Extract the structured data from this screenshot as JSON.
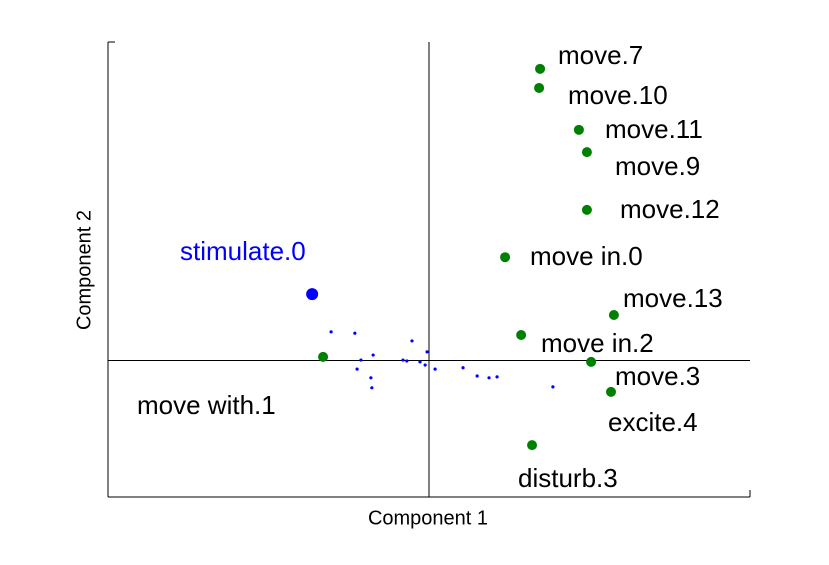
{
  "chart_data": {
    "type": "scatter",
    "xlabel": "Component 1",
    "ylabel": "Component 2",
    "xlim": [
      -1,
      1
    ],
    "ylim": [
      -0.3,
      0.7
    ],
    "series": [
      {
        "color": "#008000",
        "labels": [
          "move.7",
          "move.10",
          "move.11",
          "move.9",
          "move.12",
          "move in.0",
          "move.13",
          "move in.2",
          "move.3",
          "excite.4",
          "disturb.3",
          "move with.1"
        ],
        "x": [
          0.346,
          0.343,
          0.467,
          0.492,
          0.492,
          0.237,
          0.576,
          0.287,
          0.505,
          0.567,
          0.321,
          -0.33
        ],
        "y": [
          0.641,
          0.599,
          0.507,
          0.458,
          0.331,
          0.227,
          0.1,
          0.056,
          -0.003,
          -0.069,
          -0.186,
          0.008
        ]
      },
      {
        "color": "#0000ff",
        "labels": [
          "stimulate.0"
        ],
        "x": [
          -0.364
        ],
        "y": [
          0.146
        ]
      },
      {
        "color": "#0000ff",
        "x": [
          -0.305,
          -0.231,
          -0.212,
          -0.174,
          -0.224,
          -0.181,
          -0.178,
          -0.053,
          -0.081,
          -0.069,
          -0.028,
          -0.006,
          -0.012,
          0.019,
          0.106,
          0.15,
          0.187,
          0.212,
          0.386
        ],
        "y": [
          0.063,
          0.06,
          0.001,
          0.012,
          -0.019,
          -0.038,
          -0.06,
          0.043,
          0.001,
          -0.001,
          -0.003,
          0.019,
          -0.01,
          -0.019,
          -0.016,
          -0.034,
          -0.038,
          -0.036,
          -0.058
        ]
      }
    ]
  }
}
